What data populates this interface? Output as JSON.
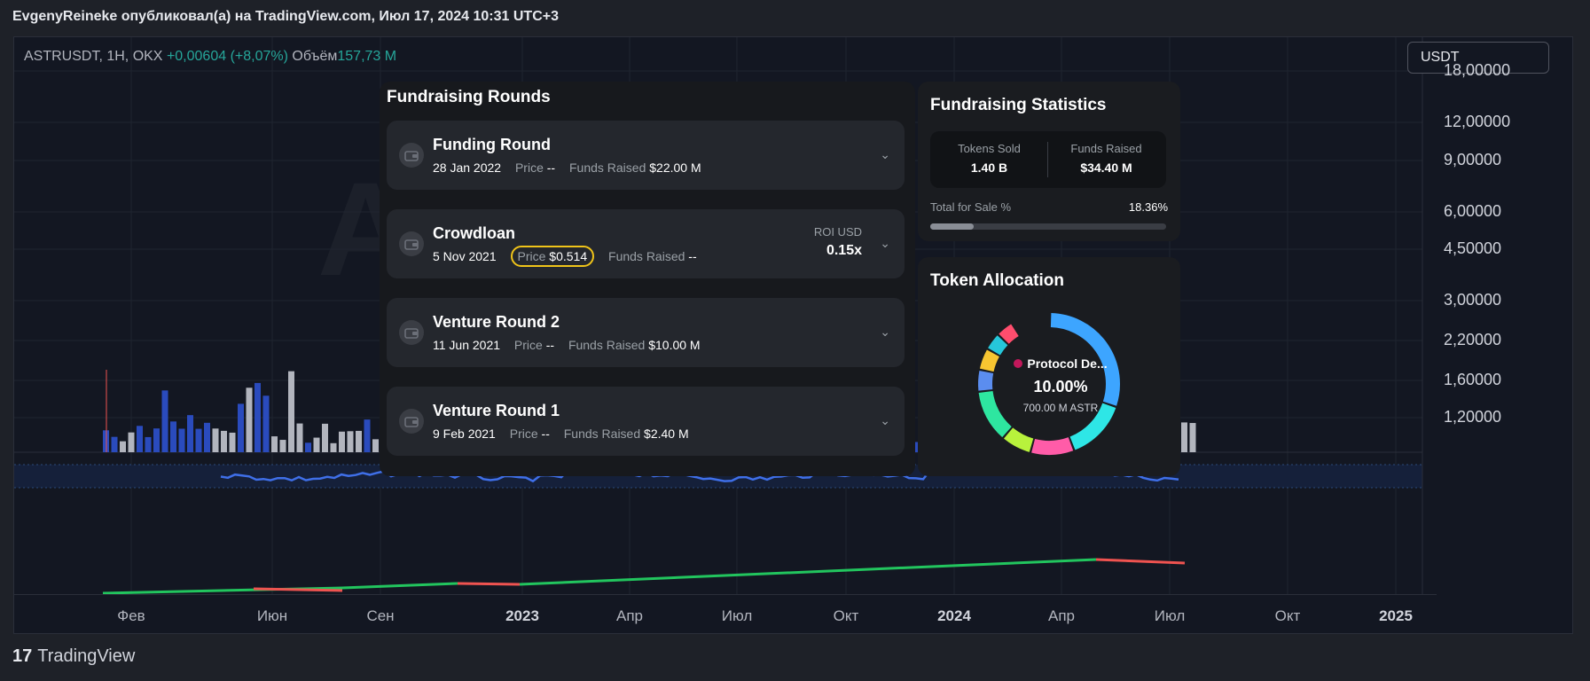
{
  "header": {
    "publish_line": "EvgenyReineke опубликовал(а) на TradingView.com, Июл 17, 2024 10:31 UTC+3"
  },
  "chart": {
    "symbol": "ASTRUSDT, 1H, OKX",
    "change": "+0,00604 (+8,07%)",
    "volume_label": "Объём",
    "volume_value": "157,73 M",
    "currency": "USDT",
    "watermark": "A",
    "price_axis": [
      "18,00000",
      "12,00000",
      "9,00000",
      "6,00000",
      "4,50000",
      "3,00000",
      "2,20000",
      "1,60000",
      "1,20000"
    ],
    "time_axis": [
      "Фев",
      "Июн",
      "Сен",
      "2023",
      "Апр",
      "Июл",
      "Окт",
      "2024",
      "Апр",
      "Июл",
      "Окт",
      "2025"
    ],
    "colors": {
      "background": "#131722",
      "volume_blue": "#2a4bbd",
      "volume_gray": "#b2b5be",
      "indicator_blue": "#3f6fe8",
      "indicator_green": "#22c55e",
      "indicator_red": "#ef5350"
    }
  },
  "fundraising_rounds": {
    "title": "Fundraising Rounds",
    "price_label": "Price",
    "funds_label": "Funds Raised",
    "rounds": [
      {
        "name": "Funding Round",
        "date": "28 Jan 2022",
        "price": "--",
        "funds": "$22.00 M"
      },
      {
        "name": "Crowdloan",
        "date": "5 Nov 2021",
        "price": "$0.514",
        "funds": "--",
        "roi_label": "ROI USD",
        "roi_value": "0.15x"
      },
      {
        "name": "Venture Round 2",
        "date": "11 Jun 2021",
        "price": "--",
        "funds": "$10.00 M"
      },
      {
        "name": "Venture Round 1",
        "date": "9 Feb 2021",
        "price": "--",
        "funds": "$2.40 M"
      }
    ]
  },
  "fundraising_stats": {
    "title": "Fundraising Statistics",
    "tokens_sold_label": "Tokens Sold",
    "tokens_sold_value": "1.40 B",
    "funds_raised_label": "Funds Raised",
    "funds_raised_value": "$34.40 M",
    "total_for_sale_label": "Total for Sale %",
    "total_for_sale_value": "18.36%",
    "total_for_sale_fraction": 0.1836
  },
  "token_allocation": {
    "title": "Token Allocation",
    "selected_name": "Protocol De...",
    "selected_percent": "10.00%",
    "selected_amount": "700.00 M ASTR",
    "segment_colors": [
      "#3da5ff",
      "#2ee6e6",
      "#ff5ca8",
      "#b8f23c",
      "#2ee6a0",
      "#5b8def",
      "#f7c531",
      "#26c6da",
      "#ff4d6d"
    ]
  },
  "footer": {
    "logo_mark": "17",
    "brand": "TradingView"
  }
}
